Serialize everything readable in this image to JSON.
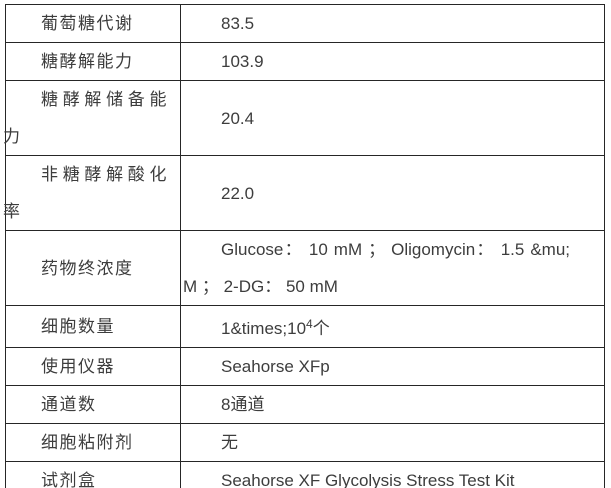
{
  "colors": {
    "background": "#ffffff",
    "border": "#262626",
    "text": "#3d3d3d"
  },
  "table": {
    "title": "seahorse-glycolysis-stress-test-parameters",
    "columns": [
      "parameter",
      "value"
    ],
    "rows": [
      {
        "label": "葡萄糖代谢",
        "value": "83.5"
      },
      {
        "label": "糖酵解能力",
        "value": "103.9"
      },
      {
        "label": "糖酵解储备能力",
        "value": "20.4"
      },
      {
        "label": "非糖酵解酸化率",
        "value": "22.0"
      },
      {
        "label": "药物终浓度",
        "value": "Glucose： 10 mM ； Oligomycin： 1.5 &mu;​M ； 2-DG： 50 mM"
      },
      {
        "label": "细胞数量",
        "value_parts": [
          {
            "text": "1&times;10"
          },
          {
            "text": "4",
            "sup": true
          },
          {
            "text": "个"
          }
        ]
      },
      {
        "label": "使用仪器",
        "value": "Seahorse XFp"
      },
      {
        "label": "通道数",
        "value": "8通道"
      },
      {
        "label": "细胞粘附剂",
        "value": "无"
      },
      {
        "label": "试剂盒",
        "value": "Seahorse XF Glycolysis Stress Test Kit"
      }
    ]
  }
}
